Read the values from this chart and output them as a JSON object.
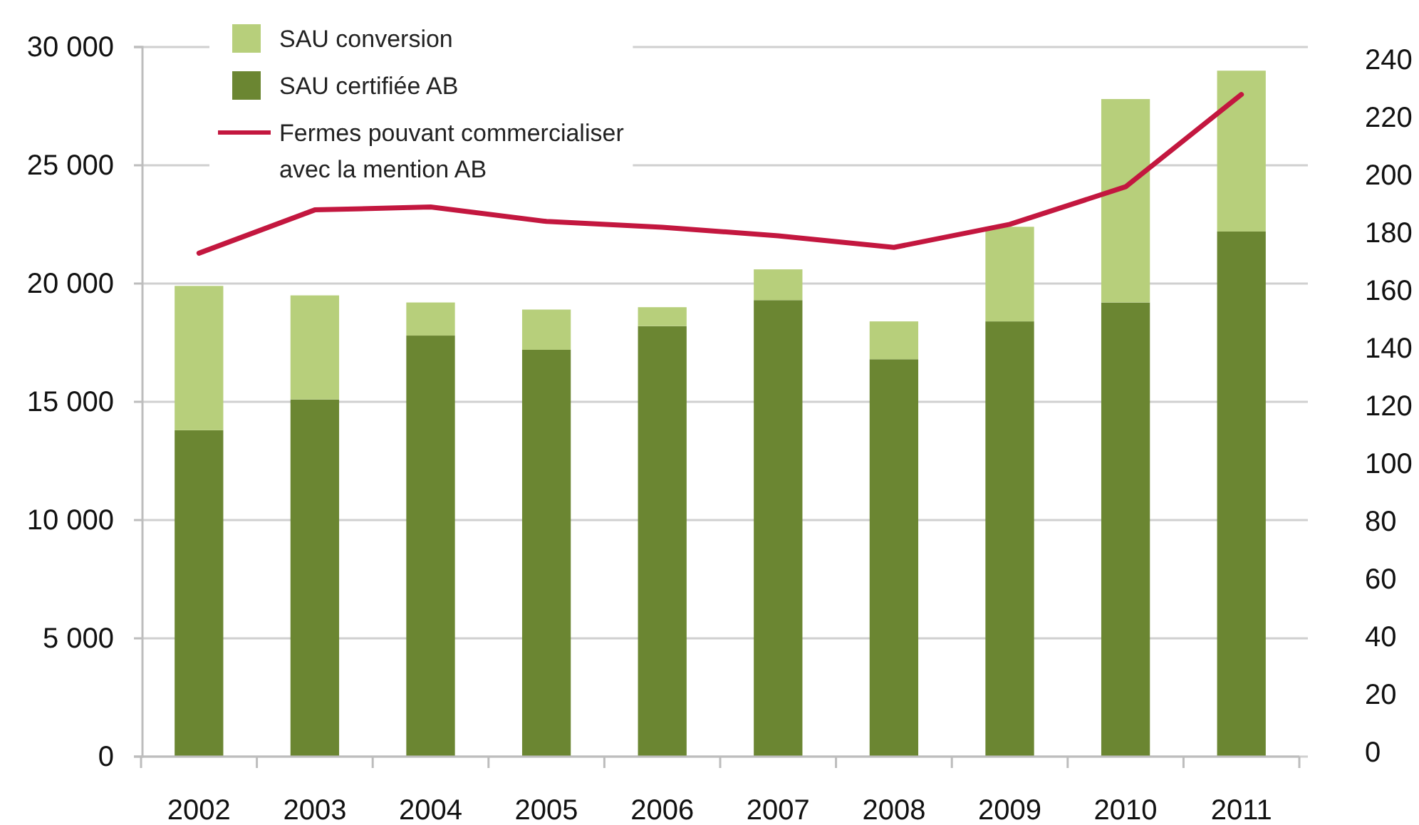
{
  "chart_data": {
    "type": "bar",
    "stacked": true,
    "categories": [
      "2002",
      "2003",
      "2004",
      "2005",
      "2006",
      "2007",
      "2008",
      "2009",
      "2010",
      "2011"
    ],
    "series": [
      {
        "name": "SAU certifiée AB",
        "color": "#6b8632",
        "values": [
          13800,
          15100,
          17800,
          17200,
          18200,
          19300,
          16800,
          18400,
          19200,
          22200
        ]
      },
      {
        "name": "SAU conversion",
        "color": "#b7cf7b",
        "values": [
          6100,
          4400,
          1400,
          1700,
          800,
          1300,
          1600,
          4000,
          8600,
          6800
        ]
      },
      {
        "name": "Fermes pouvant commercialiser avec la mention AB",
        "type": "line",
        "axis": "y2",
        "color": "#c3173f",
        "values": [
          173,
          188,
          189,
          184,
          182,
          179,
          175,
          183,
          196,
          228
        ]
      }
    ],
    "ylim": [
      0,
      30000
    ],
    "yticks": [
      0,
      {
        "value": 5000,
        "label": "5 000"
      },
      {
        "value": 10000,
        "label": "10 000"
      },
      {
        "value": 15000,
        "label": "15 000"
      },
      {
        "value": 20000,
        "label": "20 000"
      },
      {
        "value": 25000,
        "label": "25 000"
      },
      {
        "value": 30000,
        "label": "30 000"
      }
    ],
    "y2lim": [
      0,
      240
    ],
    "y2ticks": [
      0,
      20,
      40,
      60,
      80,
      100,
      120,
      140,
      160,
      180,
      200,
      220,
      240
    ],
    "grid": "y",
    "legend": "top left"
  }
}
